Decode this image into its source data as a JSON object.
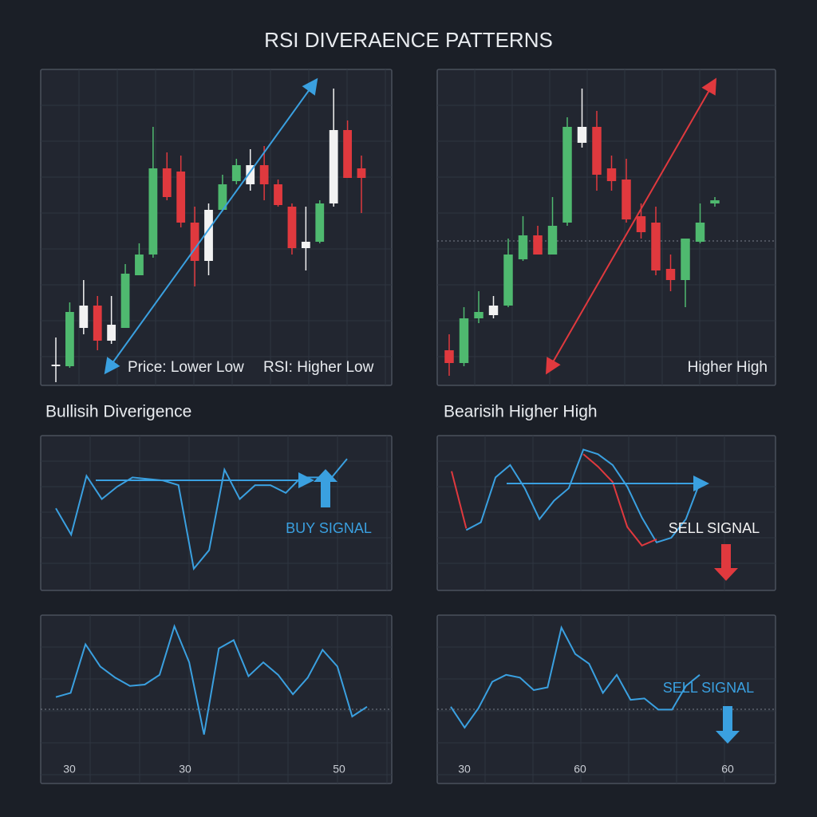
{
  "title": "RSI DIVERAENCE PATTERNS",
  "chart_data": [
    {
      "type": "candlestick",
      "annotations": [
        "Price: Lower Low",
        "RSI: Higher Low"
      ],
      "ylim": [
        0,
        99
      ],
      "candles": [
        {
          "open": 6.5,
          "high": 15,
          "low": 1,
          "close": 6,
          "color": "#f2f2f2"
        },
        {
          "open": 6,
          "high": 26,
          "low": 5.5,
          "close": 23,
          "color": "#4fb96f"
        },
        {
          "open": 18,
          "high": 33,
          "low": 16,
          "close": 25,
          "color": "#f2f2f2"
        },
        {
          "open": 25,
          "high": 28,
          "low": 11,
          "close": 14,
          "color": "#e0393e"
        },
        {
          "open": 14,
          "high": 28,
          "low": 13,
          "close": 19,
          "color": "#f2f2f2"
        },
        {
          "open": 18,
          "high": 38,
          "low": 18,
          "close": 35,
          "color": "#4fb96f"
        },
        {
          "open": 34.5,
          "high": 44.5,
          "low": 34.5,
          "close": 41,
          "color": "#4fb96f"
        },
        {
          "open": 41,
          "high": 81,
          "low": 40,
          "close": 68,
          "color": "#4fb96f"
        },
        {
          "open": 68,
          "high": 73,
          "low": 58,
          "close": 59,
          "color": "#e0393e"
        },
        {
          "open": 67,
          "high": 72,
          "low": 49.5,
          "close": 51,
          "color": "#e0393e"
        },
        {
          "open": 51,
          "high": 56,
          "low": 31,
          "close": 39,
          "color": "#e0393e"
        },
        {
          "open": 39,
          "high": 57,
          "low": 34.5,
          "close": 55,
          "color": "#f2f2f2"
        },
        {
          "open": 55,
          "high": 66,
          "low": 54.5,
          "close": 63,
          "color": "#4fb96f"
        },
        {
          "open": 64,
          "high": 71,
          "low": 63,
          "close": 69,
          "color": "#4fb96f"
        },
        {
          "open": 63,
          "high": 74,
          "low": 61,
          "close": 69,
          "color": "#f2f2f2"
        },
        {
          "open": 69,
          "high": 75,
          "low": 58,
          "close": 63,
          "color": "#e0393e"
        },
        {
          "open": 63,
          "high": 64.5,
          "low": 56,
          "close": 56.5,
          "color": "#e0393e"
        },
        {
          "open": 56,
          "high": 57,
          "low": 41,
          "close": 43,
          "color": "#e0393e"
        },
        {
          "open": 43,
          "high": 56,
          "low": 36,
          "close": 45,
          "color": "#f2f2f2"
        },
        {
          "open": 45,
          "high": 58,
          "low": 44.5,
          "close": 57,
          "color": "#4fb96f"
        },
        {
          "open": 57,
          "high": 93,
          "low": 56,
          "close": 80,
          "color": "#f2f2f2"
        },
        {
          "open": 80,
          "high": 83,
          "low": 65,
          "close": 65,
          "color": "#e0393e"
        },
        {
          "open": 68,
          "high": 72,
          "low": 54,
          "close": 65,
          "color": "#e0393e"
        }
      ]
    },
    {
      "type": "candlestick",
      "annotations": [
        "Higher High"
      ],
      "ylim": [
        0,
        99
      ],
      "candles": [
        {
          "open": 11,
          "high": 16,
          "low": 3,
          "close": 7,
          "color": "#e0393e"
        },
        {
          "open": 7,
          "high": 24.5,
          "low": 6,
          "close": 21,
          "color": "#4fb96f"
        },
        {
          "open": 21,
          "high": 29.5,
          "low": 19.5,
          "close": 23,
          "color": "#4fb96f"
        },
        {
          "open": 22,
          "high": 28,
          "low": 21,
          "close": 25,
          "color": "#f2f2f2"
        },
        {
          "open": 25,
          "high": 46,
          "low": 24.5,
          "close": 41,
          "color": "#4fb96f"
        },
        {
          "open": 39.5,
          "high": 53,
          "low": 39,
          "close": 47,
          "color": "#4fb96f"
        },
        {
          "open": 47,
          "high": 50,
          "low": 41,
          "close": 41,
          "color": "#e0393e"
        },
        {
          "open": 41,
          "high": 59,
          "low": 41,
          "close": 50,
          "color": "#4fb96f"
        },
        {
          "open": 51,
          "high": 84,
          "low": 50,
          "close": 81,
          "color": "#4fb96f"
        },
        {
          "open": 76,
          "high": 93,
          "low": 74.5,
          "close": 81,
          "color": "#f2f2f2"
        },
        {
          "open": 81,
          "high": 86,
          "low": 61,
          "close": 66,
          "color": "#e0393e"
        },
        {
          "open": 68,
          "high": 72,
          "low": 61,
          "close": 64,
          "color": "#e0393e"
        },
        {
          "open": 64.5,
          "high": 71,
          "low": 51,
          "close": 52,
          "color": "#e0393e"
        },
        {
          "open": 53,
          "high": 57,
          "low": 46,
          "close": 48,
          "color": "#e0393e"
        },
        {
          "open": 51,
          "high": 56,
          "low": 34.5,
          "close": 36,
          "color": "#e0393e"
        },
        {
          "open": 36.5,
          "high": 41,
          "low": 29.5,
          "close": 33,
          "color": "#e0393e"
        },
        {
          "open": 33,
          "high": 46,
          "low": 24.5,
          "close": 46,
          "color": "#4fb96f"
        },
        {
          "open": 45,
          "high": 57,
          "low": 44.5,
          "close": 51,
          "color": "#4fb96f"
        },
        {
          "open": 57,
          "high": 59,
          "low": 56,
          "close": 58,
          "color": "#4fb96f"
        }
      ]
    },
    {
      "type": "line",
      "title": "Bullisih Diverigence",
      "signal": "BUY SIGNAL",
      "signal_color": "#3aa0e0",
      "ylim": [
        0,
        100
      ],
      "series": [
        {
          "color": "#3aa0e0",
          "values": [
            53,
            36,
            74,
            59,
            67,
            73,
            72,
            71,
            68,
            14,
            26,
            78,
            59,
            68,
            68,
            63,
            73,
            73,
            73,
            85
          ]
        }
      ]
    },
    {
      "type": "line",
      "title": "Bearisih Higher High",
      "signal": "SELL SIGNAL",
      "signal_color": "#f2f2f2",
      "ylim": [
        0,
        100
      ],
      "series": [
        {
          "color": "#3aa0e0",
          "values": [
            null,
            39,
            44,
            73,
            81,
            66,
            46,
            58,
            66,
            91,
            88,
            81,
            67,
            47,
            31,
            34,
            46,
            71
          ]
        },
        {
          "color": "#e0393e",
          "values": [
            77,
            40,
            null,
            null,
            null,
            null,
            null,
            null,
            null,
            88,
            80,
            70,
            41,
            29,
            33,
            null,
            null,
            null
          ]
        }
      ]
    },
    {
      "type": "line",
      "x_labels": [
        "30",
        "30",
        "50"
      ],
      "ylim": [
        0,
        100
      ],
      "series": [
        {
          "color": "#3aa0e0",
          "values": [
            41,
            44,
            79,
            63,
            55,
            49,
            50,
            57,
            92,
            66,
            14,
            76,
            82,
            56,
            66,
            57,
            43,
            55,
            75,
            63,
            27,
            34
          ]
        }
      ]
    },
    {
      "type": "line",
      "x_labels": [
        "30",
        "60",
        "60"
      ],
      "signal": "SELL SIGNAL",
      "signal_color": "#3aa0e0",
      "ylim": [
        0,
        100
      ],
      "series": [
        {
          "color": "#3aa0e0",
          "values": [
            34,
            19,
            33,
            52,
            57,
            55,
            46,
            48,
            91,
            72,
            65,
            44,
            57,
            39,
            40,
            32,
            32,
            49,
            57
          ]
        }
      ]
    }
  ]
}
